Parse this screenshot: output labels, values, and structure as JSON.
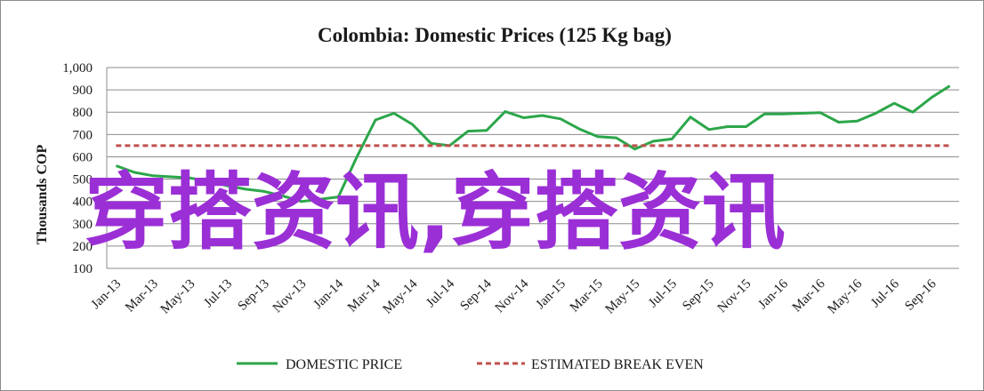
{
  "chart_data": {
    "type": "line",
    "title": "Colombia:  Domestic Prices (125 Kg bag)",
    "ylabel": "Thousands COP",
    "xlabel": "",
    "ylim": [
      100,
      1000
    ],
    "yticks": [
      "100",
      "200",
      "300",
      "400",
      "500",
      "600",
      "700",
      "800",
      "900",
      "1,000"
    ],
    "ytick_values": [
      100,
      200,
      300,
      400,
      500,
      600,
      700,
      800,
      900,
      1000
    ],
    "xtick_labels": [
      "Jan-13",
      "Mar-13",
      "May-13",
      "Jul-13",
      "Sep-13",
      "Nov-13",
      "Jan-14",
      "Mar-14",
      "May-14",
      "Jul-14",
      "Sep-14",
      "Nov-14",
      "Jan-15",
      "Mar-15",
      "May-15",
      "Jul-15",
      "Sep-15",
      "Nov-15",
      "Jan-16",
      "Mar-16",
      "May-16",
      "Jul-16",
      "Sep-16"
    ],
    "grid": "horizontal",
    "legend_position": "bottom",
    "series": [
      {
        "name": "DOMESTIC PRICE",
        "color": "#2ca64a",
        "style": "solid",
        "x": [
          "Jan-13",
          "Feb-13",
          "Mar-13",
          "Apr-13",
          "May-13",
          "Jun-13",
          "Jul-13",
          "Aug-13",
          "Sep-13",
          "Oct-13",
          "Nov-13",
          "Dec-13",
          "Jan-14",
          "Feb-14",
          "Mar-14",
          "Apr-14",
          "May-14",
          "Jun-14",
          "Jul-14",
          "Aug-14",
          "Sep-14",
          "Oct-14",
          "Nov-14",
          "Dec-14",
          "Jan-15",
          "Feb-15",
          "Mar-15",
          "Apr-15",
          "May-15",
          "Jun-15",
          "Jul-15",
          "Aug-15",
          "Sep-15",
          "Oct-15",
          "Nov-15",
          "Dec-15",
          "Jan-16",
          "Feb-16",
          "Mar-16",
          "Apr-16",
          "May-16",
          "Jun-16",
          "Jul-16",
          "Aug-16",
          "Sep-16",
          "Oct-16"
        ],
        "values": [
          560,
          530,
          515,
          510,
          505,
          490,
          470,
          455,
          445,
          425,
          400,
          410,
          420,
          600,
          765,
          795,
          745,
          660,
          650,
          715,
          718,
          803,
          775,
          785,
          770,
          725,
          690,
          685,
          635,
          670,
          680,
          778,
          722,
          735,
          735,
          792,
          792,
          795,
          798,
          755,
          760,
          795,
          840,
          800,
          865,
          918
        ]
      },
      {
        "name": "ESTIMATED BREAK EVEN",
        "color": "#c0504d",
        "style": "dashed",
        "x": [
          "Jan-13",
          "Oct-16"
        ],
        "values": [
          650,
          650
        ]
      }
    ]
  },
  "watermark": {
    "text": "穿搭资讯,穿搭资讯",
    "color": "#9b2fd6"
  }
}
